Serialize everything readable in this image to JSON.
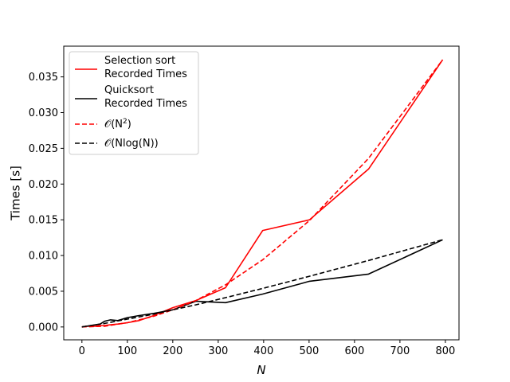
{
  "chart_data": {
    "type": "line",
    "title": "",
    "xlabel": "N",
    "ylabel": "Times [s]",
    "xlim": [
      -40,
      830
    ],
    "ylim": [
      -0.0018,
      0.0393
    ],
    "xticks": [
      0,
      100,
      200,
      300,
      400,
      500,
      600,
      700,
      800
    ],
    "yticks": [
      0.0,
      0.005,
      0.01,
      0.015,
      0.02,
      0.025,
      0.03,
      0.035
    ],
    "xtick_labels": [
      "0",
      "100",
      "200",
      "300",
      "400",
      "500",
      "600",
      "700",
      "800"
    ],
    "ytick_labels": [
      "0.000",
      "0.005",
      "0.010",
      "0.015",
      "0.020",
      "0.025",
      "0.030",
      "0.035"
    ],
    "grid": false,
    "legend_position": "upper-left",
    "series": [
      {
        "name": "Selection sort Recorded Times",
        "label_lines": [
          "Selection sort",
          "Recorded Times"
        ],
        "color": "#ff0000",
        "style": "solid",
        "x": [
          0,
          10,
          20,
          30,
          40,
          50,
          63,
          79,
          100,
          126,
          158,
          200,
          251,
          316,
          398,
          501,
          631,
          794
        ],
        "y": [
          0.0,
          0.0001,
          0.0001,
          0.0001,
          0.0002,
          0.0002,
          0.0003,
          0.0004,
          0.0006,
          0.0009,
          0.0016,
          0.0027,
          0.0037,
          0.0055,
          0.0135,
          0.015,
          0.0221,
          0.0374
        ]
      },
      {
        "name": "Quicksort Recorded Times",
        "label_lines": [
          "Quicksort",
          "Recorded Times"
        ],
        "color": "#000000",
        "style": "solid",
        "x": [
          0,
          10,
          20,
          30,
          40,
          50,
          63,
          79,
          100,
          126,
          158,
          200,
          251,
          316,
          398,
          501,
          631,
          794
        ],
        "y": [
          0.0,
          0.0001,
          0.0002,
          0.0003,
          0.0004,
          0.0008,
          0.001,
          0.0009,
          0.0013,
          0.0016,
          0.0019,
          0.0024,
          0.0036,
          0.0034,
          0.0046,
          0.0064,
          0.0074,
          0.0122
        ]
      },
      {
        "name": "O(N^2)",
        "label_main": "𝒪(N",
        "label_sup": "2",
        "label_end": ")",
        "color": "#ff0000",
        "style": "dashed",
        "x": [
          0,
          50,
          100,
          158,
          200,
          251,
          316,
          398,
          501,
          631,
          794
        ],
        "y": [
          0.0,
          0.0001,
          0.0006,
          0.0015,
          0.0024,
          0.0037,
          0.0059,
          0.0094,
          0.0149,
          0.0236,
          0.0374
        ]
      },
      {
        "name": "O(N log(N))",
        "label_main": "𝒪(Nlog(N))",
        "color": "#000000",
        "style": "dashed",
        "x": [
          0,
          50,
          100,
          158,
          200,
          251,
          316,
          398,
          501,
          631,
          794
        ],
        "y": [
          0.0,
          0.0005,
          0.0011,
          0.0018,
          0.0024,
          0.0031,
          0.0041,
          0.0054,
          0.0071,
          0.0093,
          0.0122
        ]
      }
    ]
  }
}
